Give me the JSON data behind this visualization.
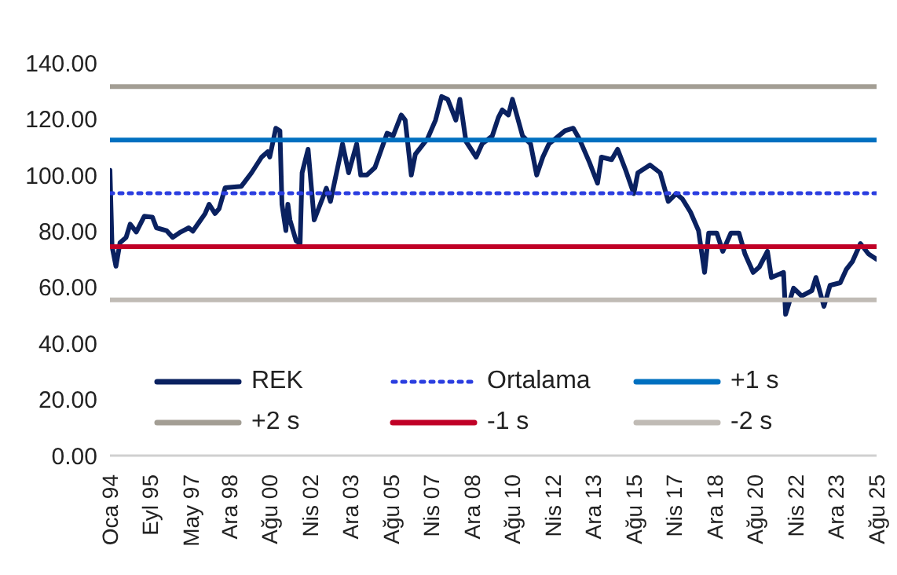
{
  "chart_data": {
    "type": "line",
    "xlim": [
      "1994-01",
      "2025-08"
    ],
    "xticks": [
      {
        "value": "1994-01",
        "label": "Oca 94"
      },
      {
        "value": "1995-09",
        "label": "Eyl 95"
      },
      {
        "value": "1997-05",
        "label": "May 97"
      },
      {
        "value": "1998-12",
        "label": "Ara 98"
      },
      {
        "value": "2000-08",
        "label": "Ağu 00"
      },
      {
        "value": "2002-04",
        "label": "Nis 02"
      },
      {
        "value": "2003-12",
        "label": "Ara 03"
      },
      {
        "value": "2005-08",
        "label": "Ağu 05"
      },
      {
        "value": "2007-04",
        "label": "Nis 07"
      },
      {
        "value": "2008-12",
        "label": "Ara 08"
      },
      {
        "value": "2010-08",
        "label": "Ağu 10"
      },
      {
        "value": "2012-04",
        "label": "Nis 12"
      },
      {
        "value": "2013-12",
        "label": "Ara 13"
      },
      {
        "value": "2015-08",
        "label": "Ağu 15"
      },
      {
        "value": "2017-04",
        "label": "Nis 17"
      },
      {
        "value": "2018-12",
        "label": "Ara 18"
      },
      {
        "value": "2020-08",
        "label": "Ağu 20"
      },
      {
        "value": "2022-04",
        "label": "Nis 22"
      },
      {
        "value": "2023-12",
        "label": "Ara 23"
      },
      {
        "value": "2025-08",
        "label": "Ağu 25"
      }
    ],
    "ylim": [
      0,
      140
    ],
    "yticks": [
      {
        "value": 0,
        "label": "0.00"
      },
      {
        "value": 20,
        "label": "20.00"
      },
      {
        "value": 40,
        "label": "40.00"
      },
      {
        "value": 60,
        "label": "60.00"
      },
      {
        "value": 80,
        "label": "80.00"
      },
      {
        "value": 100,
        "label": "100.00"
      },
      {
        "value": 120,
        "label": "120.00"
      },
      {
        "value": 140,
        "label": "140.00"
      }
    ],
    "grid": false,
    "legend": "bottom",
    "marker": "none",
    "series": [
      {
        "name": "REK",
        "color": "#0a2160",
        "line_style": "solid",
        "x": [
          "1994-01",
          "1994-02",
          "1994-04",
          "1994-06",
          "1994-09",
          "1994-11",
          "1995-02",
          "1995-06",
          "1995-10",
          "1995-12",
          "1996-05",
          "1996-08",
          "1996-12",
          "1997-04",
          "1997-06",
          "1997-12",
          "1998-02",
          "1998-05",
          "1998-07",
          "1998-10",
          "1999-06",
          "1999-11",
          "2000-04",
          "2000-07",
          "2000-08",
          "2000-11",
          "2001-01",
          "2001-02",
          "2001-04",
          "2001-05",
          "2001-06",
          "2001-09",
          "2001-11",
          "2001-12",
          "2002-03",
          "2002-06",
          "2002-10",
          "2002-12",
          "2003-02",
          "2003-07",
          "2003-08",
          "2003-11",
          "2004-03",
          "2004-05",
          "2004-08",
          "2004-12",
          "2005-06",
          "2005-09",
          "2006-01",
          "2006-03",
          "2006-06",
          "2006-08",
          "2007-02",
          "2007-06",
          "2007-09",
          "2007-12",
          "2008-04",
          "2008-06",
          "2008-09",
          "2009-02",
          "2009-05",
          "2009-10",
          "2010-01",
          "2010-03",
          "2010-06",
          "2010-08",
          "2011-01",
          "2011-05",
          "2011-08",
          "2011-11",
          "2012-02",
          "2012-10",
          "2013-02",
          "2013-05",
          "2013-10",
          "2014-02",
          "2014-04",
          "2014-09",
          "2014-12",
          "2015-04",
          "2015-08",
          "2015-10",
          "2016-04",
          "2016-09",
          "2017-01",
          "2017-05",
          "2017-08",
          "2017-12",
          "2018-04",
          "2018-07",
          "2018-09",
          "2019-01",
          "2019-04",
          "2019-08",
          "2019-12",
          "2020-03",
          "2020-07",
          "2020-10",
          "2021-02",
          "2021-04",
          "2021-10",
          "2021-11",
          "2022-03",
          "2022-07",
          "2022-12",
          "2023-02",
          "2023-06",
          "2023-09",
          "2024-02",
          "2024-05",
          "2024-08",
          "2024-12",
          "2025-04",
          "2025-08"
        ],
        "values": [
          101.7,
          74.6,
          67.5,
          75.9,
          77.8,
          82.5,
          79.7,
          85.3,
          85,
          81.2,
          80.2,
          77.8,
          79.7,
          81.2,
          80,
          86.2,
          89.6,
          86.3,
          88,
          95.5,
          96,
          100.8,
          106.4,
          108.3,
          106.4,
          116.7,
          115.8,
          89.6,
          80.2,
          89.6,
          84,
          76.6,
          75.6,
          100.8,
          109.2,
          84,
          91.5,
          95.3,
          90.6,
          107.4,
          111.1,
          100.8,
          111.1,
          100,
          100,
          102.7,
          114.9,
          114,
          121.4,
          119.6,
          100,
          107.4,
          113,
          119.6,
          128,
          127,
          119.6,
          127,
          112,
          106.4,
          111.1,
          113.9,
          120.5,
          123.2,
          121.4,
          127,
          113.9,
          111.1,
          100,
          106.4,
          111.1,
          115.8,
          116.7,
          113,
          104.6,
          97.1,
          106.4,
          105.5,
          109.2,
          101.7,
          93.4,
          100.8,
          103.6,
          100.8,
          90.6,
          93.4,
          91.5,
          86.8,
          80.2,
          65.3,
          79.3,
          79.3,
          72.8,
          79.3,
          79.3,
          71.8,
          65.3,
          67.2,
          72.8,
          63.5,
          65.3,
          50.4,
          59.7,
          56.9,
          58.8,
          63.5,
          53.2,
          60.7,
          61.6,
          66.3,
          69.1,
          75.6,
          71.9,
          70
        ]
      },
      {
        "name": "Ortalama",
        "color": "#2b3ee0",
        "line_style": "dotted",
        "x": [
          "1994-01",
          "2025-08"
        ],
        "values": [
          93.5,
          93.5
        ]
      },
      {
        "name": "+1 s",
        "color": "#0070c0",
        "line_style": "solid",
        "x": [
          "1994-01",
          "2025-08"
        ],
        "values": [
          112.5,
          112.5
        ]
      },
      {
        "name": "+2 s",
        "color": "#a39e94",
        "line_style": "solid",
        "x": [
          "1994-01",
          "2025-08"
        ],
        "values": [
          131.5,
          131.5
        ]
      },
      {
        "name": "-1 s",
        "color": "#c00026",
        "line_style": "solid",
        "x": [
          "1994-01",
          "2025-08"
        ],
        "values": [
          74.5,
          74.5
        ]
      },
      {
        "name": "-2 s",
        "color": "#c0bbb5",
        "line_style": "solid",
        "x": [
          "1994-01",
          "2025-08"
        ],
        "values": [
          55.5,
          55.5
        ]
      }
    ]
  }
}
